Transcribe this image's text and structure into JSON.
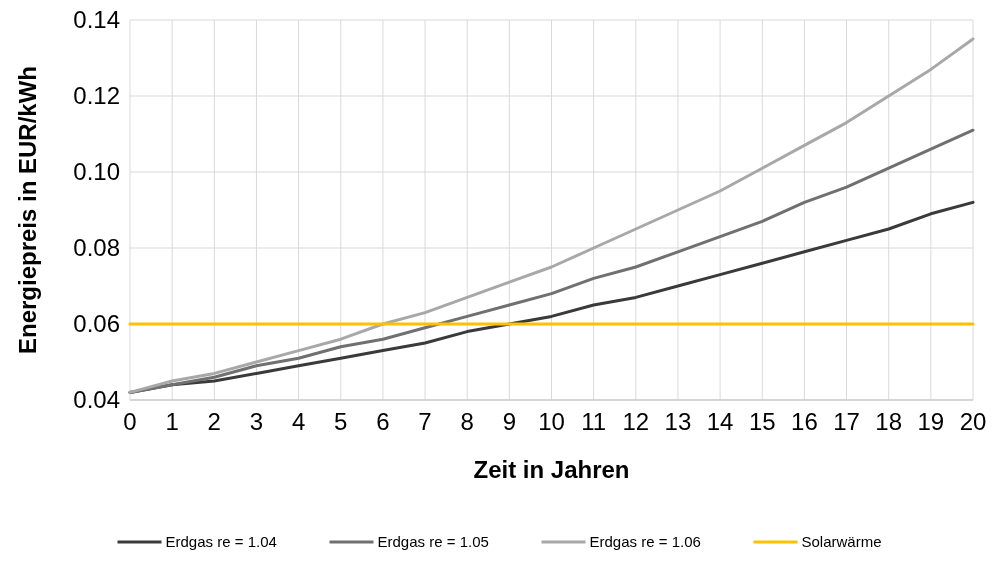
{
  "chart_data": {
    "type": "line",
    "xlabel": "Zeit in Jahren",
    "ylabel": "Energiepreis in EUR/kWh",
    "x": [
      0,
      1,
      2,
      3,
      4,
      5,
      6,
      7,
      8,
      9,
      10,
      11,
      12,
      13,
      14,
      15,
      16,
      17,
      18,
      19,
      20
    ],
    "xlim": [
      0,
      20
    ],
    "xticks": [
      0,
      1,
      2,
      3,
      4,
      5,
      6,
      7,
      8,
      9,
      10,
      11,
      12,
      13,
      14,
      15,
      16,
      17,
      18,
      19,
      20
    ],
    "ylim": [
      0.04,
      0.14
    ],
    "yticks": [
      {
        "value": 0.04,
        "label": "0.04"
      },
      {
        "value": 0.06,
        "label": "0.06"
      },
      {
        "value": 0.08,
        "label": "0.08"
      },
      {
        "value": 0.1,
        "label": "0.10"
      },
      {
        "value": 0.12,
        "label": "0.12"
      },
      {
        "value": 0.14,
        "label": "0.14"
      }
    ],
    "grid": true,
    "legend": "bottom",
    "marker": "none",
    "line_style": "solid",
    "series": [
      {
        "name": "Erdgas re = 1.04",
        "color": "#3a3a3a",
        "values": [
          0.042,
          0.044,
          0.045,
          0.047,
          0.049,
          0.051,
          0.053,
          0.055,
          0.058,
          0.06,
          0.062,
          0.065,
          0.067,
          0.07,
          0.073,
          0.076,
          0.079,
          0.082,
          0.085,
          0.089,
          0.092
        ]
      },
      {
        "name": "Erdgas re = 1.05",
        "color": "#707070",
        "values": [
          0.042,
          0.044,
          0.046,
          0.049,
          0.051,
          0.054,
          0.056,
          0.059,
          0.062,
          0.065,
          0.068,
          0.072,
          0.075,
          0.079,
          0.083,
          0.087,
          0.092,
          0.096,
          0.101,
          0.106,
          0.111
        ]
      },
      {
        "name": "Erdgas re = 1.06",
        "color": "#a8a8a8",
        "values": [
          0.042,
          0.045,
          0.047,
          0.05,
          0.053,
          0.056,
          0.06,
          0.063,
          0.067,
          0.071,
          0.075,
          0.08,
          0.085,
          0.09,
          0.095,
          0.101,
          0.107,
          0.113,
          0.12,
          0.127,
          0.135
        ]
      },
      {
        "name": "Solarwärme",
        "color": "#ffc000",
        "values": [
          0.06,
          0.06,
          0.06,
          0.06,
          0.06,
          0.06,
          0.06,
          0.06,
          0.06,
          0.06,
          0.06,
          0.06,
          0.06,
          0.06,
          0.06,
          0.06,
          0.06,
          0.06,
          0.06,
          0.06,
          0.06
        ]
      }
    ]
  }
}
